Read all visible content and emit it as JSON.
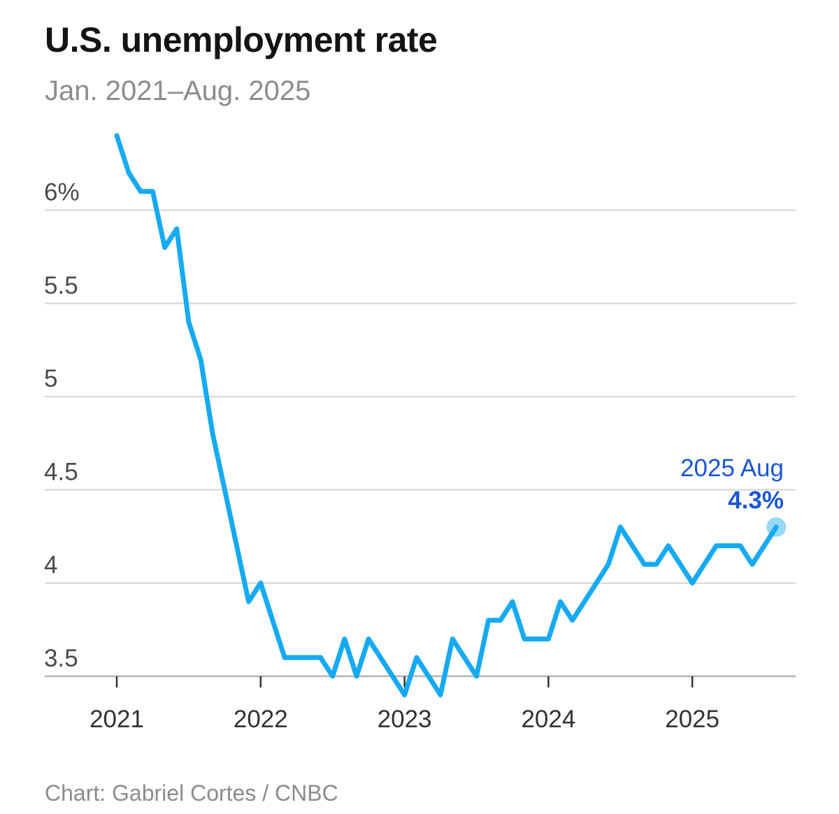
{
  "title": "U.S. unemployment rate",
  "subtitle": "Jan. 2021–Aug. 2025",
  "credit": "Chart: Gabriel Cortes / CNBC",
  "colors": {
    "line": "#16aaf2",
    "highlight": "#1a56d6",
    "grid": "#dcdcdc",
    "axis": "#b4b4b4"
  },
  "chart_data": {
    "type": "line",
    "title": "U.S. unemployment rate",
    "subtitle": "Jan. 2021–Aug. 2025",
    "xlabel": "",
    "ylabel": "",
    "ylim": [
      3.4,
      6.3
    ],
    "grid": true,
    "y_ticks": [
      {
        "value": 3.5,
        "label": "3.5"
      },
      {
        "value": 4,
        "label": "4"
      },
      {
        "value": 4.5,
        "label": "4.5"
      },
      {
        "value": 5,
        "label": "5"
      },
      {
        "value": 5.5,
        "label": "5.5"
      },
      {
        "value": 6,
        "label": "6%"
      }
    ],
    "x_ticks": [
      {
        "month_index": 0,
        "label": "2021"
      },
      {
        "month_index": 12,
        "label": "2022"
      },
      {
        "month_index": 24,
        "label": "2023"
      },
      {
        "month_index": 36,
        "label": "2024"
      },
      {
        "month_index": 48,
        "label": "2025"
      }
    ],
    "x": [
      "2021-01",
      "2021-02",
      "2021-03",
      "2021-04",
      "2021-05",
      "2021-06",
      "2021-07",
      "2021-08",
      "2021-09",
      "2021-10",
      "2021-11",
      "2021-12",
      "2022-01",
      "2022-02",
      "2022-03",
      "2022-04",
      "2022-05",
      "2022-06",
      "2022-07",
      "2022-08",
      "2022-09",
      "2022-10",
      "2022-11",
      "2022-12",
      "2023-01",
      "2023-02",
      "2023-03",
      "2023-04",
      "2023-05",
      "2023-06",
      "2023-07",
      "2023-08",
      "2023-09",
      "2023-10",
      "2023-11",
      "2023-12",
      "2024-01",
      "2024-02",
      "2024-03",
      "2024-04",
      "2024-05",
      "2024-06",
      "2024-07",
      "2024-08",
      "2024-09",
      "2024-10",
      "2024-11",
      "2024-12",
      "2025-01",
      "2025-02",
      "2025-03",
      "2025-04",
      "2025-05",
      "2025-06",
      "2025-07",
      "2025-08"
    ],
    "series": [
      {
        "values": [
          6.4,
          6.2,
          6.1,
          6.1,
          5.8,
          5.9,
          5.4,
          5.2,
          4.8,
          4.5,
          4.2,
          3.9,
          4.0,
          3.8,
          3.6,
          3.6,
          3.6,
          3.6,
          3.5,
          3.7,
          3.5,
          3.7,
          3.6,
          3.5,
          3.4,
          3.6,
          3.5,
          3.4,
          3.7,
          3.6,
          3.5,
          3.8,
          3.8,
          3.9,
          3.7,
          3.7,
          3.7,
          3.9,
          3.8,
          3.9,
          4.0,
          4.1,
          4.3,
          4.2,
          4.1,
          4.1,
          4.2,
          4.1,
          4.0,
          4.1,
          4.2,
          4.2,
          4.2,
          4.1,
          4.2,
          4.3
        ]
      }
    ],
    "annotation": {
      "label": "2025 Aug",
      "value_label": "4.3%",
      "month_index": 55,
      "value": 4.3
    }
  }
}
